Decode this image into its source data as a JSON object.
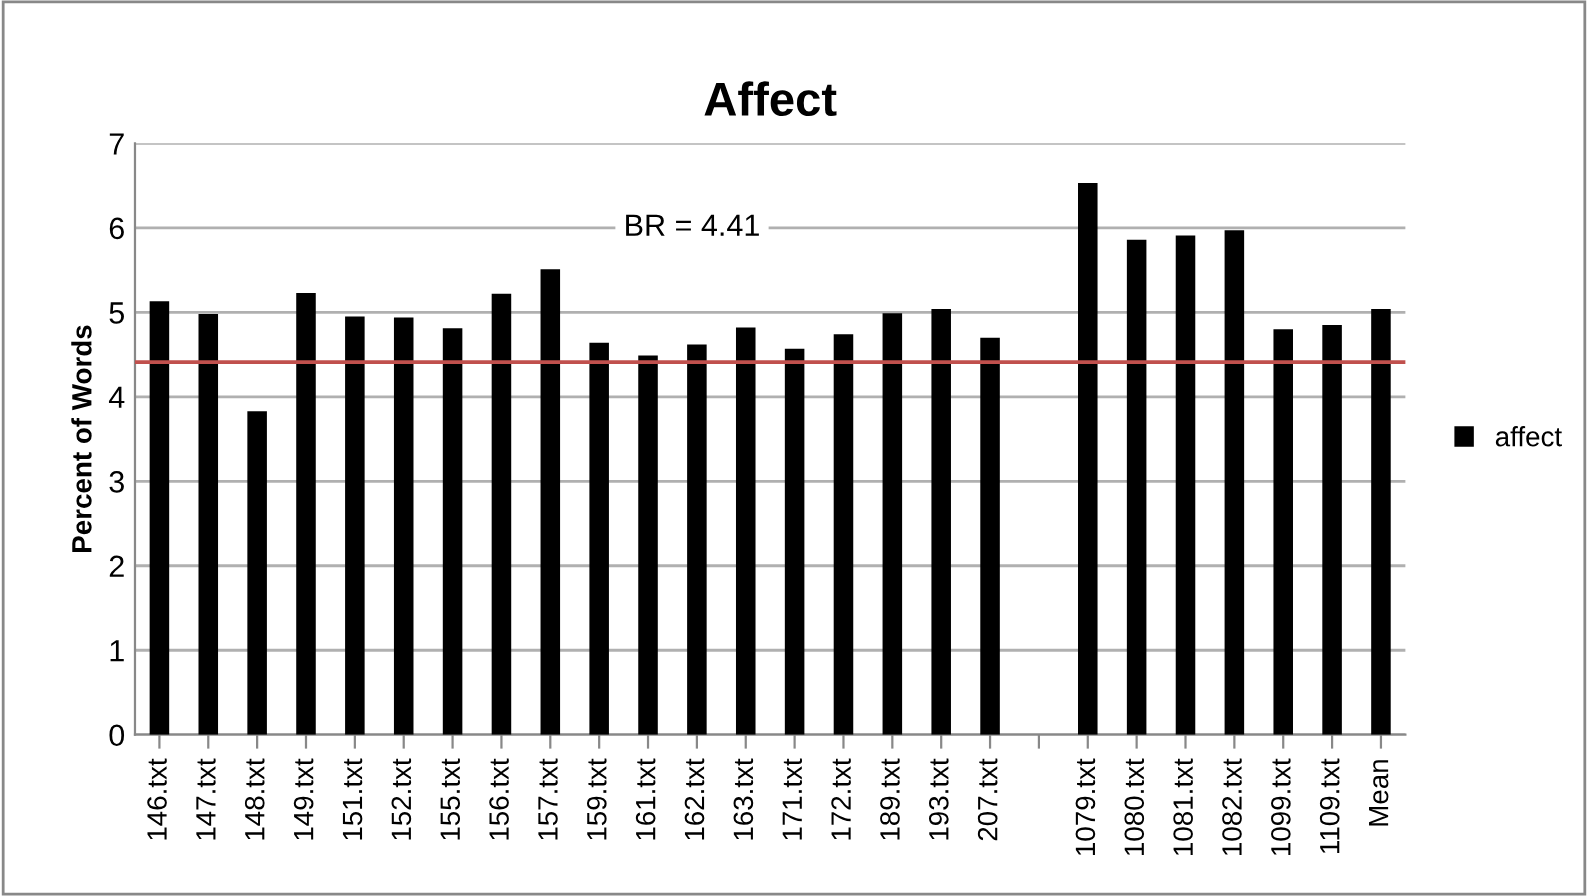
{
  "chart_data": {
    "type": "bar",
    "title": "Affect",
    "ylabel": "Percent of Words",
    "categories": [
      "146.txt",
      "147.txt",
      "148.txt",
      "149.txt",
      "151.txt",
      "152.txt",
      "155.txt",
      "156.txt",
      "157.txt",
      "159.txt",
      "161.txt",
      "162.txt",
      "163.txt",
      "171.txt",
      "172.txt",
      "189.txt",
      "193.txt",
      "207.txt",
      null,
      "1079.txt",
      "1080.txt",
      "1081.txt",
      "1082.txt",
      "1099.txt",
      "1109.txt",
      "Mean"
    ],
    "series": [
      {
        "name": "affect",
        "color": "#000000",
        "values": [
          5.13,
          4.98,
          3.83,
          5.23,
          4.95,
          4.94,
          4.81,
          5.22,
          5.51,
          4.64,
          4.49,
          4.62,
          4.82,
          4.57,
          4.74,
          4.99,
          5.04,
          4.7,
          null,
          6.53,
          5.86,
          5.91,
          5.97,
          4.8,
          4.85,
          5.04
        ]
      }
    ],
    "ylim": [
      0,
      7
    ],
    "yticks": [
      0,
      1,
      2,
      3,
      4,
      5,
      6,
      7
    ],
    "grid": "y",
    "legend": "right",
    "annotations": [
      "BR = 4.41"
    ],
    "ref_lines": [
      {
        "axis": "y",
        "value": 4.41,
        "color": "#c0504d"
      }
    ]
  }
}
